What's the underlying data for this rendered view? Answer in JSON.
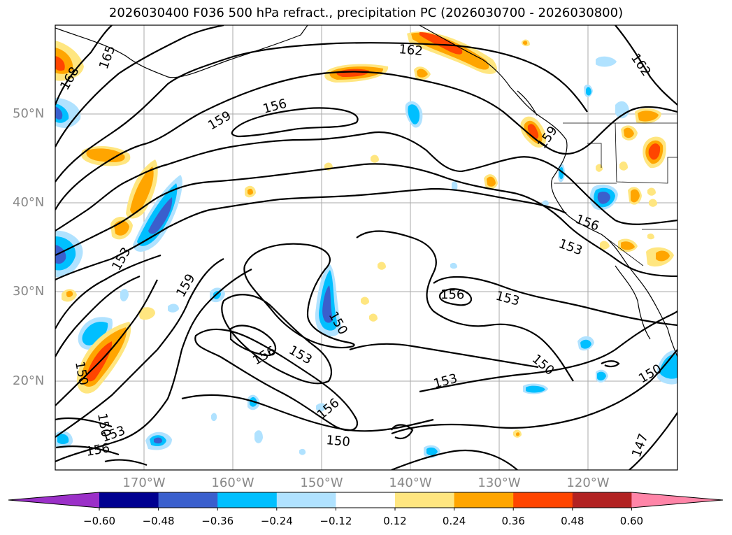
{
  "title": "2026030400 F036 500 hPa refract., precipitation PC (2026030700 - 2026030800)",
  "lat_labels": [
    "50°N",
    "40°N",
    "30°N",
    "20°N"
  ],
  "lon_labels": [
    "170°W",
    "160°W",
    "150°W",
    "140°W",
    "130°W",
    "120°W"
  ],
  "colorbar": {
    "ticks": [
      "−0.60",
      "−0.48",
      "−0.36",
      "−0.24",
      "−0.12",
      "0.12",
      "0.24",
      "0.36",
      "0.48",
      "0.60"
    ],
    "colors": [
      "#9b30c8",
      "#000090",
      "#3a5fcd",
      "#00bfff",
      "#b0e2ff",
      "#ffffff",
      "#ffe680",
      "#ffa500",
      "#ff4500",
      "#b22222",
      "#ff85a8"
    ]
  },
  "contour_labels": {
    "l165": "165",
    "l168": "168",
    "l162a": "162",
    "l162b": "162",
    "l159a": "159",
    "l156a": "156",
    "l159b": "159",
    "l156b": "156",
    "l153a": "153",
    "l153b": "153",
    "l150a": "150",
    "l156c": "156",
    "l153c": "153",
    "l150b": "150",
    "l153d": "153",
    "l150c": "150",
    "l156d": "156",
    "l150d": "150",
    "l147": "147",
    "l150e": "150",
    "l156e": "156",
    "l153e": "153",
    "l156f": "156",
    "l153f": "153",
    "l150f": "150",
    "l159c": "159"
  }
}
